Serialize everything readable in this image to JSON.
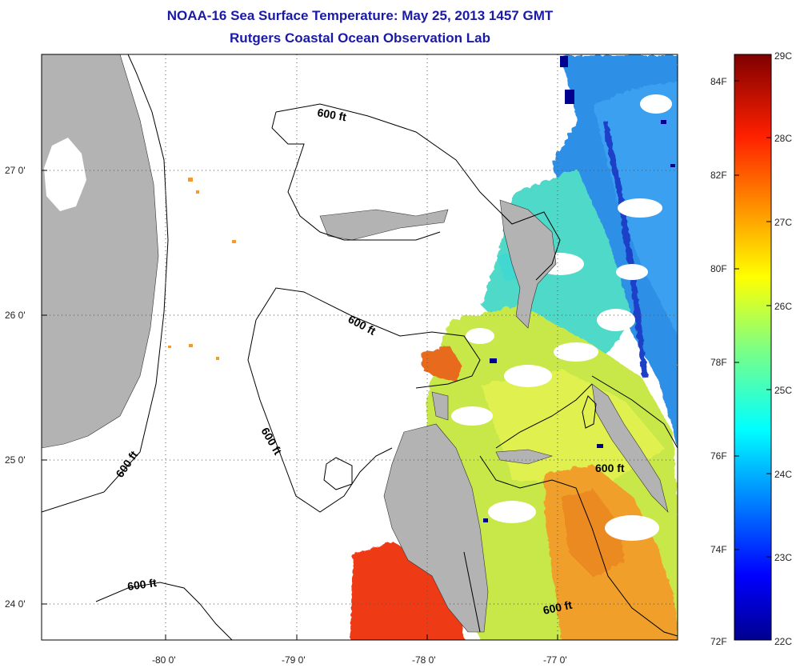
{
  "header": {
    "title": "NOAA-16 Sea Surface Temperature:  May 25, 2013 1457 GMT",
    "subtitle": "Rutgers Coastal Ocean Observation Lab"
  },
  "map": {
    "lat_labels": [
      "27 0'",
      "26 0'",
      "25 0'",
      "24 0'"
    ],
    "lon_labels": [
      "-80 0'",
      "-79 0'",
      "-78 0'",
      "-77 0'"
    ],
    "contour_label": "600 ft",
    "land_color": "#b3b3b3",
    "cloud_color": "#ffffff"
  },
  "colorbar": {
    "celsius_labels": [
      "29C",
      "28C",
      "27C",
      "26C",
      "25C",
      "24C",
      "23C",
      "22C"
    ],
    "fahrenheit_labels": [
      "84F",
      "82F",
      "80F",
      "78F",
      "76F",
      "74F",
      "72F"
    ],
    "colors": [
      "#7f0000",
      "#ff0000",
      "#ff8000",
      "#ffff00",
      "#80ff80",
      "#00ffff",
      "#0080ff",
      "#0000ff",
      "#00008f"
    ]
  }
}
